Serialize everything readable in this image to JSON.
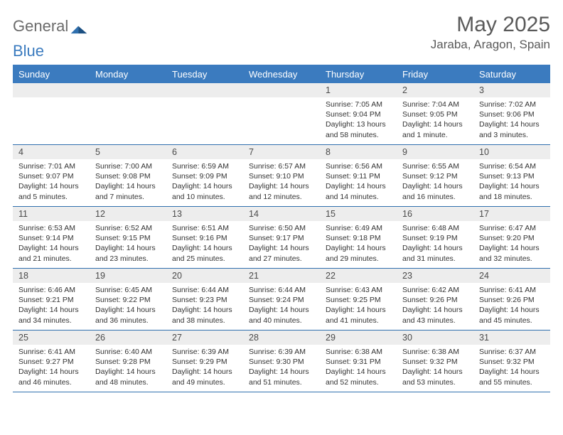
{
  "logo": {
    "text1": "General",
    "text2": "Blue"
  },
  "title": {
    "month": "May 2025",
    "location": "Jaraba, Aragon, Spain"
  },
  "colors": {
    "header_bg": "#3b7bbf",
    "daynum_bg": "#ededed",
    "border": "#2f6fae",
    "text": "#333333",
    "title_text": "#5a5a5a"
  },
  "day_names": [
    "Sunday",
    "Monday",
    "Tuesday",
    "Wednesday",
    "Thursday",
    "Friday",
    "Saturday"
  ],
  "weeks": [
    [
      {
        "n": "",
        "sunrise": "",
        "sunset": "",
        "daylight": ""
      },
      {
        "n": "",
        "sunrise": "",
        "sunset": "",
        "daylight": ""
      },
      {
        "n": "",
        "sunrise": "",
        "sunset": "",
        "daylight": ""
      },
      {
        "n": "",
        "sunrise": "",
        "sunset": "",
        "daylight": ""
      },
      {
        "n": "1",
        "sunrise": "Sunrise: 7:05 AM",
        "sunset": "Sunset: 9:04 PM",
        "daylight": "Daylight: 13 hours and 58 minutes."
      },
      {
        "n": "2",
        "sunrise": "Sunrise: 7:04 AM",
        "sunset": "Sunset: 9:05 PM",
        "daylight": "Daylight: 14 hours and 1 minute."
      },
      {
        "n": "3",
        "sunrise": "Sunrise: 7:02 AM",
        "sunset": "Sunset: 9:06 PM",
        "daylight": "Daylight: 14 hours and 3 minutes."
      }
    ],
    [
      {
        "n": "4",
        "sunrise": "Sunrise: 7:01 AM",
        "sunset": "Sunset: 9:07 PM",
        "daylight": "Daylight: 14 hours and 5 minutes."
      },
      {
        "n": "5",
        "sunrise": "Sunrise: 7:00 AM",
        "sunset": "Sunset: 9:08 PM",
        "daylight": "Daylight: 14 hours and 7 minutes."
      },
      {
        "n": "6",
        "sunrise": "Sunrise: 6:59 AM",
        "sunset": "Sunset: 9:09 PM",
        "daylight": "Daylight: 14 hours and 10 minutes."
      },
      {
        "n": "7",
        "sunrise": "Sunrise: 6:57 AM",
        "sunset": "Sunset: 9:10 PM",
        "daylight": "Daylight: 14 hours and 12 minutes."
      },
      {
        "n": "8",
        "sunrise": "Sunrise: 6:56 AM",
        "sunset": "Sunset: 9:11 PM",
        "daylight": "Daylight: 14 hours and 14 minutes."
      },
      {
        "n": "9",
        "sunrise": "Sunrise: 6:55 AM",
        "sunset": "Sunset: 9:12 PM",
        "daylight": "Daylight: 14 hours and 16 minutes."
      },
      {
        "n": "10",
        "sunrise": "Sunrise: 6:54 AM",
        "sunset": "Sunset: 9:13 PM",
        "daylight": "Daylight: 14 hours and 18 minutes."
      }
    ],
    [
      {
        "n": "11",
        "sunrise": "Sunrise: 6:53 AM",
        "sunset": "Sunset: 9:14 PM",
        "daylight": "Daylight: 14 hours and 21 minutes."
      },
      {
        "n": "12",
        "sunrise": "Sunrise: 6:52 AM",
        "sunset": "Sunset: 9:15 PM",
        "daylight": "Daylight: 14 hours and 23 minutes."
      },
      {
        "n": "13",
        "sunrise": "Sunrise: 6:51 AM",
        "sunset": "Sunset: 9:16 PM",
        "daylight": "Daylight: 14 hours and 25 minutes."
      },
      {
        "n": "14",
        "sunrise": "Sunrise: 6:50 AM",
        "sunset": "Sunset: 9:17 PM",
        "daylight": "Daylight: 14 hours and 27 minutes."
      },
      {
        "n": "15",
        "sunrise": "Sunrise: 6:49 AM",
        "sunset": "Sunset: 9:18 PM",
        "daylight": "Daylight: 14 hours and 29 minutes."
      },
      {
        "n": "16",
        "sunrise": "Sunrise: 6:48 AM",
        "sunset": "Sunset: 9:19 PM",
        "daylight": "Daylight: 14 hours and 31 minutes."
      },
      {
        "n": "17",
        "sunrise": "Sunrise: 6:47 AM",
        "sunset": "Sunset: 9:20 PM",
        "daylight": "Daylight: 14 hours and 32 minutes."
      }
    ],
    [
      {
        "n": "18",
        "sunrise": "Sunrise: 6:46 AM",
        "sunset": "Sunset: 9:21 PM",
        "daylight": "Daylight: 14 hours and 34 minutes."
      },
      {
        "n": "19",
        "sunrise": "Sunrise: 6:45 AM",
        "sunset": "Sunset: 9:22 PM",
        "daylight": "Daylight: 14 hours and 36 minutes."
      },
      {
        "n": "20",
        "sunrise": "Sunrise: 6:44 AM",
        "sunset": "Sunset: 9:23 PM",
        "daylight": "Daylight: 14 hours and 38 minutes."
      },
      {
        "n": "21",
        "sunrise": "Sunrise: 6:44 AM",
        "sunset": "Sunset: 9:24 PM",
        "daylight": "Daylight: 14 hours and 40 minutes."
      },
      {
        "n": "22",
        "sunrise": "Sunrise: 6:43 AM",
        "sunset": "Sunset: 9:25 PM",
        "daylight": "Daylight: 14 hours and 41 minutes."
      },
      {
        "n": "23",
        "sunrise": "Sunrise: 6:42 AM",
        "sunset": "Sunset: 9:26 PM",
        "daylight": "Daylight: 14 hours and 43 minutes."
      },
      {
        "n": "24",
        "sunrise": "Sunrise: 6:41 AM",
        "sunset": "Sunset: 9:26 PM",
        "daylight": "Daylight: 14 hours and 45 minutes."
      }
    ],
    [
      {
        "n": "25",
        "sunrise": "Sunrise: 6:41 AM",
        "sunset": "Sunset: 9:27 PM",
        "daylight": "Daylight: 14 hours and 46 minutes."
      },
      {
        "n": "26",
        "sunrise": "Sunrise: 6:40 AM",
        "sunset": "Sunset: 9:28 PM",
        "daylight": "Daylight: 14 hours and 48 minutes."
      },
      {
        "n": "27",
        "sunrise": "Sunrise: 6:39 AM",
        "sunset": "Sunset: 9:29 PM",
        "daylight": "Daylight: 14 hours and 49 minutes."
      },
      {
        "n": "28",
        "sunrise": "Sunrise: 6:39 AM",
        "sunset": "Sunset: 9:30 PM",
        "daylight": "Daylight: 14 hours and 51 minutes."
      },
      {
        "n": "29",
        "sunrise": "Sunrise: 6:38 AM",
        "sunset": "Sunset: 9:31 PM",
        "daylight": "Daylight: 14 hours and 52 minutes."
      },
      {
        "n": "30",
        "sunrise": "Sunrise: 6:38 AM",
        "sunset": "Sunset: 9:32 PM",
        "daylight": "Daylight: 14 hours and 53 minutes."
      },
      {
        "n": "31",
        "sunrise": "Sunrise: 6:37 AM",
        "sunset": "Sunset: 9:32 PM",
        "daylight": "Daylight: 14 hours and 55 minutes."
      }
    ]
  ]
}
